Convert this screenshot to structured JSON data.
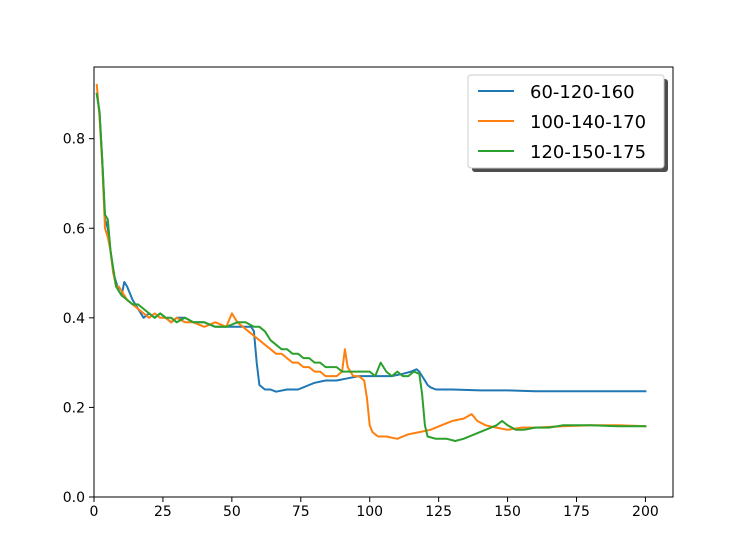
{
  "chart_data": {
    "type": "line",
    "title": "",
    "xlabel": "",
    "ylabel": "",
    "xlim": [
      0,
      210
    ],
    "ylim": [
      0.0,
      0.96
    ],
    "xticks": [
      0,
      25,
      50,
      75,
      100,
      125,
      150,
      175,
      200
    ],
    "yticks": [
      0.0,
      0.2,
      0.4,
      0.6,
      0.8
    ],
    "xtick_labels": [
      "0",
      "25",
      "50",
      "75",
      "100",
      "125",
      "150",
      "175",
      "200"
    ],
    "ytick_labels": [
      "0.0",
      "0.2",
      "0.4",
      "0.6",
      "0.8"
    ],
    "grid": false,
    "legend_position": "upper right",
    "series": [
      {
        "name": "60-120-160",
        "color": "#1f77b4",
        "points": [
          [
            1,
            0.9
          ],
          [
            2,
            0.86
          ],
          [
            3,
            0.75
          ],
          [
            4,
            0.62
          ],
          [
            5,
            0.6
          ],
          [
            6,
            0.55
          ],
          [
            7,
            0.5
          ],
          [
            8,
            0.48
          ],
          [
            9,
            0.46
          ],
          [
            10,
            0.45
          ],
          [
            11,
            0.48
          ],
          [
            12,
            0.47
          ],
          [
            14,
            0.44
          ],
          [
            16,
            0.42
          ],
          [
            18,
            0.4
          ],
          [
            20,
            0.41
          ],
          [
            22,
            0.4
          ],
          [
            24,
            0.41
          ],
          [
            26,
            0.4
          ],
          [
            28,
            0.39
          ],
          [
            30,
            0.4
          ],
          [
            33,
            0.4
          ],
          [
            36,
            0.39
          ],
          [
            40,
            0.39
          ],
          [
            44,
            0.38
          ],
          [
            48,
            0.38
          ],
          [
            52,
            0.38
          ],
          [
            55,
            0.38
          ],
          [
            57,
            0.38
          ],
          [
            58,
            0.37
          ],
          [
            59,
            0.3
          ],
          [
            60,
            0.25
          ],
          [
            62,
            0.24
          ],
          [
            64,
            0.24
          ],
          [
            66,
            0.235
          ],
          [
            70,
            0.24
          ],
          [
            74,
            0.24
          ],
          [
            76,
            0.245
          ],
          [
            78,
            0.25
          ],
          [
            80,
            0.255
          ],
          [
            84,
            0.26
          ],
          [
            88,
            0.26
          ],
          [
            92,
            0.265
          ],
          [
            96,
            0.27
          ],
          [
            100,
            0.27
          ],
          [
            104,
            0.27
          ],
          [
            108,
            0.27
          ],
          [
            112,
            0.275
          ],
          [
            115,
            0.28
          ],
          [
            117,
            0.285
          ],
          [
            118,
            0.28
          ],
          [
            119,
            0.27
          ],
          [
            120,
            0.26
          ],
          [
            121,
            0.25
          ],
          [
            122,
            0.245
          ],
          [
            124,
            0.24
          ],
          [
            130,
            0.24
          ],
          [
            140,
            0.238
          ],
          [
            150,
            0.238
          ],
          [
            160,
            0.236
          ],
          [
            170,
            0.236
          ],
          [
            180,
            0.236
          ],
          [
            190,
            0.236
          ],
          [
            200,
            0.236
          ]
        ]
      },
      {
        "name": "100-140-170",
        "color": "#ff7f0e",
        "points": [
          [
            1,
            0.92
          ],
          [
            2,
            0.85
          ],
          [
            3,
            0.74
          ],
          [
            4,
            0.6
          ],
          [
            5,
            0.58
          ],
          [
            6,
            0.55
          ],
          [
            7,
            0.5
          ],
          [
            8,
            0.47
          ],
          [
            9,
            0.47
          ],
          [
            10,
            0.46
          ],
          [
            12,
            0.44
          ],
          [
            14,
            0.43
          ],
          [
            16,
            0.42
          ],
          [
            18,
            0.41
          ],
          [
            20,
            0.4
          ],
          [
            22,
            0.41
          ],
          [
            24,
            0.4
          ],
          [
            26,
            0.4
          ],
          [
            28,
            0.39
          ],
          [
            30,
            0.4
          ],
          [
            33,
            0.39
          ],
          [
            36,
            0.39
          ],
          [
            40,
            0.38
          ],
          [
            44,
            0.39
          ],
          [
            48,
            0.38
          ],
          [
            50,
            0.41
          ],
          [
            52,
            0.39
          ],
          [
            54,
            0.38
          ],
          [
            56,
            0.37
          ],
          [
            58,
            0.36
          ],
          [
            60,
            0.35
          ],
          [
            62,
            0.34
          ],
          [
            64,
            0.33
          ],
          [
            66,
            0.32
          ],
          [
            68,
            0.32
          ],
          [
            70,
            0.31
          ],
          [
            72,
            0.3
          ],
          [
            74,
            0.3
          ],
          [
            76,
            0.29
          ],
          [
            78,
            0.29
          ],
          [
            80,
            0.28
          ],
          [
            82,
            0.28
          ],
          [
            84,
            0.27
          ],
          [
            86,
            0.27
          ],
          [
            88,
            0.27
          ],
          [
            90,
            0.28
          ],
          [
            91,
            0.33
          ],
          [
            92,
            0.29
          ],
          [
            94,
            0.27
          ],
          [
            96,
            0.27
          ],
          [
            98,
            0.26
          ],
          [
            99,
            0.22
          ],
          [
            100,
            0.16
          ],
          [
            101,
            0.145
          ],
          [
            103,
            0.135
          ],
          [
            106,
            0.135
          ],
          [
            110,
            0.13
          ],
          [
            114,
            0.14
          ],
          [
            118,
            0.145
          ],
          [
            122,
            0.15
          ],
          [
            126,
            0.16
          ],
          [
            130,
            0.17
          ],
          [
            134,
            0.175
          ],
          [
            137,
            0.185
          ],
          [
            139,
            0.17
          ],
          [
            142,
            0.16
          ],
          [
            146,
            0.155
          ],
          [
            150,
            0.15
          ],
          [
            155,
            0.155
          ],
          [
            160,
            0.155
          ],
          [
            170,
            0.158
          ],
          [
            180,
            0.16
          ],
          [
            190,
            0.16
          ],
          [
            200,
            0.158
          ]
        ]
      },
      {
        "name": "120-150-175",
        "color": "#2ca02c",
        "points": [
          [
            1,
            0.9
          ],
          [
            2,
            0.86
          ],
          [
            3,
            0.75
          ],
          [
            4,
            0.63
          ],
          [
            5,
            0.62
          ],
          [
            6,
            0.55
          ],
          [
            7,
            0.51
          ],
          [
            8,
            0.47
          ],
          [
            9,
            0.46
          ],
          [
            10,
            0.45
          ],
          [
            12,
            0.44
          ],
          [
            14,
            0.43
          ],
          [
            16,
            0.43
          ],
          [
            18,
            0.42
          ],
          [
            20,
            0.41
          ],
          [
            22,
            0.4
          ],
          [
            24,
            0.41
          ],
          [
            26,
            0.4
          ],
          [
            28,
            0.4
          ],
          [
            30,
            0.39
          ],
          [
            33,
            0.4
          ],
          [
            36,
            0.39
          ],
          [
            40,
            0.39
          ],
          [
            44,
            0.38
          ],
          [
            48,
            0.38
          ],
          [
            52,
            0.39
          ],
          [
            55,
            0.39
          ],
          [
            58,
            0.38
          ],
          [
            60,
            0.38
          ],
          [
            62,
            0.37
          ],
          [
            64,
            0.35
          ],
          [
            66,
            0.34
          ],
          [
            68,
            0.33
          ],
          [
            70,
            0.33
          ],
          [
            72,
            0.32
          ],
          [
            74,
            0.32
          ],
          [
            76,
            0.31
          ],
          [
            78,
            0.31
          ],
          [
            80,
            0.3
          ],
          [
            82,
            0.3
          ],
          [
            84,
            0.29
          ],
          [
            86,
            0.29
          ],
          [
            88,
            0.29
          ],
          [
            90,
            0.28
          ],
          [
            94,
            0.28
          ],
          [
            98,
            0.28
          ],
          [
            100,
            0.28
          ],
          [
            102,
            0.27
          ],
          [
            104,
            0.3
          ],
          [
            106,
            0.28
          ],
          [
            108,
            0.27
          ],
          [
            110,
            0.28
          ],
          [
            112,
            0.27
          ],
          [
            114,
            0.27
          ],
          [
            116,
            0.28
          ],
          [
            118,
            0.275
          ],
          [
            119,
            0.23
          ],
          [
            120,
            0.16
          ],
          [
            121,
            0.135
          ],
          [
            124,
            0.13
          ],
          [
            128,
            0.13
          ],
          [
            131,
            0.125
          ],
          [
            134,
            0.13
          ],
          [
            138,
            0.14
          ],
          [
            142,
            0.15
          ],
          [
            146,
            0.16
          ],
          [
            148,
            0.17
          ],
          [
            150,
            0.16
          ],
          [
            153,
            0.15
          ],
          [
            156,
            0.15
          ],
          [
            160,
            0.155
          ],
          [
            165,
            0.155
          ],
          [
            170,
            0.16
          ],
          [
            180,
            0.16
          ],
          [
            190,
            0.158
          ],
          [
            200,
            0.158
          ]
        ]
      }
    ]
  }
}
